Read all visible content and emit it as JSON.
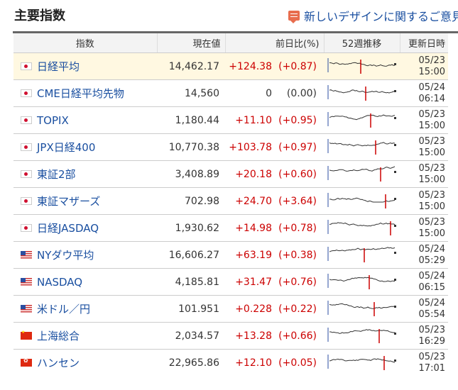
{
  "header": {
    "title": "主要指数",
    "notice_link": "新しいデザインに関するご意見"
  },
  "columns": {
    "name": "指数",
    "value": "現在値",
    "change": "前日比(%)",
    "trend": "52週推移",
    "updated": "更新日時"
  },
  "colors": {
    "positive": "#cc0000",
    "link": "#1a4fa0",
    "highlight_row": "#fff8e1",
    "sparkline": "#333333",
    "marker": "#cc0000"
  },
  "rows": [
    {
      "flag": "flag-jp",
      "name": "日経平均",
      "value": "14,462.17",
      "change": "+124.38",
      "pct": "(+0.87)",
      "date": "05/23",
      "time": "15:00",
      "highlight": true
    },
    {
      "flag": "flag-jp",
      "name": "CME日経平均先物",
      "value": "14,560",
      "change": "0",
      "pct": "(0.00)",
      "date": "05/24",
      "time": "06:14",
      "highlight": false
    },
    {
      "flag": "flag-jp",
      "name": "TOPIX",
      "value": "1,180.44",
      "change": "+11.10",
      "pct": "(+0.95)",
      "date": "05/23",
      "time": "15:00",
      "highlight": false
    },
    {
      "flag": "flag-jp",
      "name": "JPX日経400",
      "value": "10,770.38",
      "change": "+103.78",
      "pct": "(+0.97)",
      "date": "05/23",
      "time": "15:00",
      "highlight": false
    },
    {
      "flag": "flag-jp",
      "name": "東証2部",
      "value": "3,408.89",
      "change": "+20.18",
      "pct": "(+0.60)",
      "date": "05/23",
      "time": "15:00",
      "highlight": false
    },
    {
      "flag": "flag-jp",
      "name": "東証マザーズ",
      "value": "702.98",
      "change": "+24.70",
      "pct": "(+3.64)",
      "date": "05/23",
      "time": "15:00",
      "highlight": false
    },
    {
      "flag": "flag-jp",
      "name": "日経JASDAQ",
      "value": "1,930.62",
      "change": "+14.98",
      "pct": "(+0.78)",
      "date": "05/23",
      "time": "15:00",
      "highlight": false
    },
    {
      "flag": "flag-us",
      "name": "NYダウ平均",
      "value": "16,606.27",
      "change": "+63.19",
      "pct": "(+0.38)",
      "date": "05/24",
      "time": "05:29",
      "highlight": false
    },
    {
      "flag": "flag-us",
      "name": "NASDAQ",
      "value": "4,185.81",
      "change": "+31.47",
      "pct": "(+0.76)",
      "date": "05/24",
      "time": "06:15",
      "highlight": false
    },
    {
      "flag": "flag-us",
      "name": "米ドル／円",
      "value": "101.951",
      "change": "+0.228",
      "pct": "(+0.22)",
      "date": "05/24",
      "time": "05:54",
      "highlight": false
    },
    {
      "flag": "flag-cn",
      "name": "上海総合",
      "value": "2,034.57",
      "change": "+13.28",
      "pct": "(+0.66)",
      "date": "05/23",
      "time": "16:29",
      "highlight": false
    },
    {
      "flag": "flag-hk",
      "name": "ハンセン",
      "value": "22,965.86",
      "change": "+12.10",
      "pct": "(+0.05)",
      "date": "05/23",
      "time": "17:01",
      "highlight": false
    }
  ]
}
